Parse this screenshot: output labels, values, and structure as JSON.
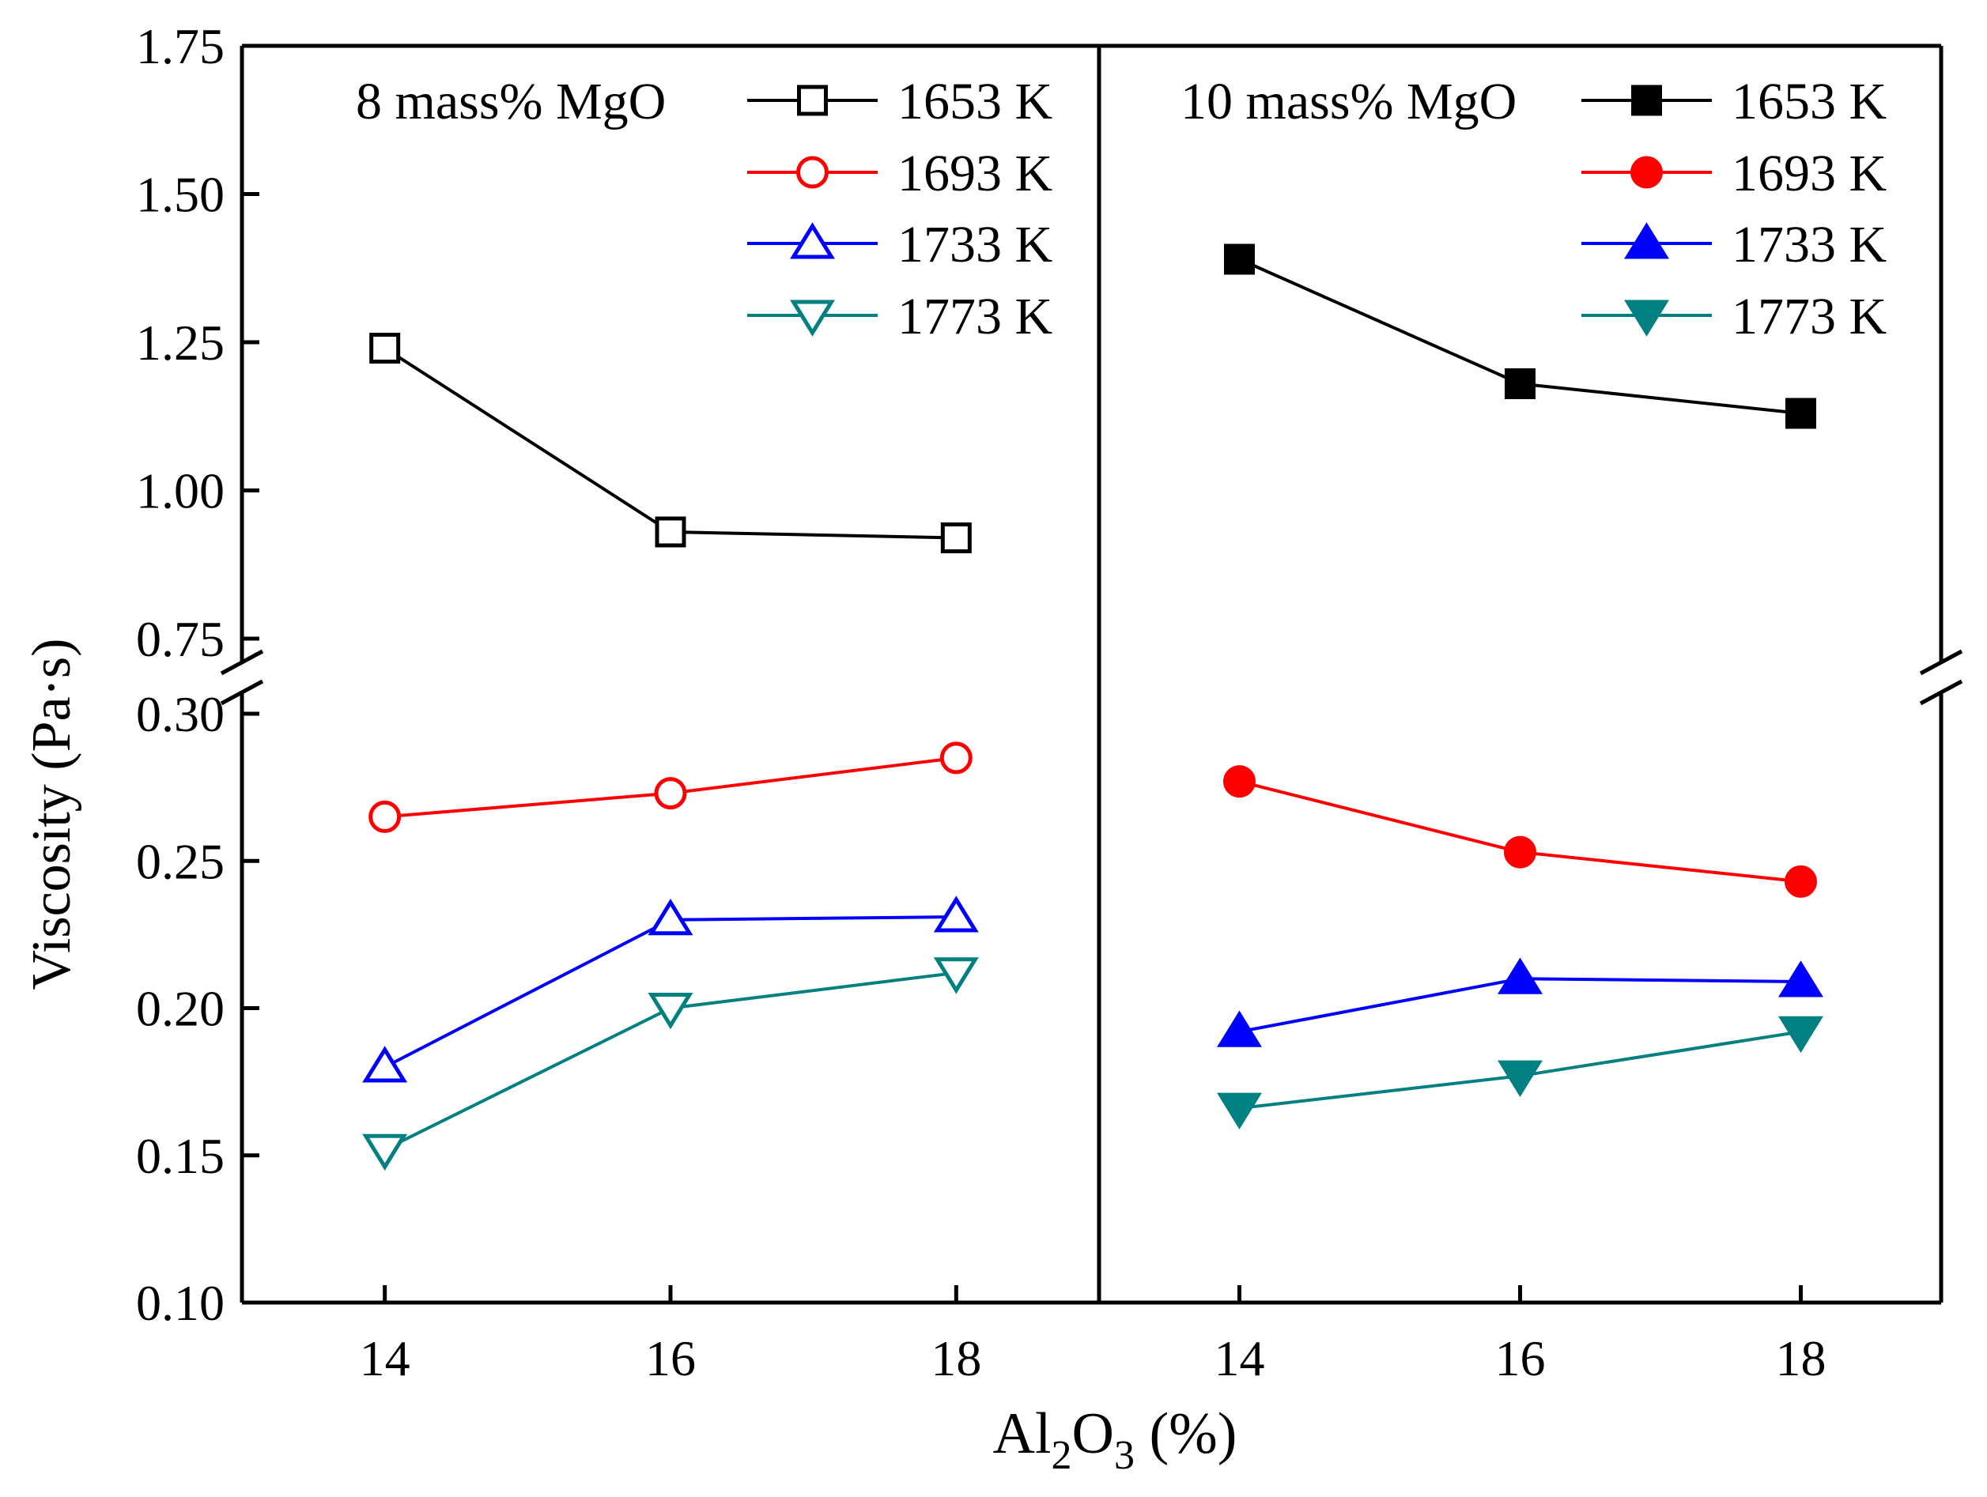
{
  "chart_data": {
    "type": "line",
    "ylabel": "Viscosity (Pa·s)",
    "xlabel": {
      "base": "Al",
      "sub1": "2",
      "mid": "O",
      "sub2": "3",
      "tail": " (%)"
    },
    "x_ticks": [
      "14",
      "16",
      "18"
    ],
    "xlim": [
      13,
      19
    ],
    "y_axis": {
      "break_between": [
        0.3,
        0.75
      ],
      "lower": {
        "range": [
          0.1,
          0.3
        ],
        "ticks": [
          "0.10",
          "0.15",
          "0.20",
          "0.25",
          "0.30"
        ]
      },
      "upper": {
        "range": [
          0.75,
          1.75
        ],
        "ticks": [
          "0.75",
          "1.00",
          "1.25",
          "1.50",
          "1.75"
        ]
      }
    },
    "panels": [
      {
        "title": "8 mass% MgO",
        "filled": false,
        "series": [
          {
            "name": "1653 K",
            "color": "#000000",
            "marker": "square",
            "x": [
              14,
              16,
              18
            ],
            "values": [
              1.24,
              0.93,
              0.92
            ]
          },
          {
            "name": "1693 K",
            "color": "#ff0000",
            "marker": "circle",
            "x": [
              14,
              16,
              18
            ],
            "values": [
              0.265,
              0.273,
              0.285
            ]
          },
          {
            "name": "1733 K",
            "color": "#0000ff",
            "marker": "triangle-up",
            "x": [
              14,
              16,
              18
            ],
            "values": [
              0.18,
              0.23,
              0.231
            ]
          },
          {
            "name": "1773 K",
            "color": "#008080",
            "marker": "triangle-down",
            "x": [
              14,
              16,
              18
            ],
            "values": [
              0.152,
              0.2,
              0.212
            ]
          }
        ]
      },
      {
        "title": "10 mass% MgO",
        "filled": true,
        "series": [
          {
            "name": "1653 K",
            "color": "#000000",
            "marker": "square",
            "x": [
              14,
              16,
              18
            ],
            "values": [
              1.39,
              1.18,
              1.13
            ]
          },
          {
            "name": "1693 K",
            "color": "#ff0000",
            "marker": "circle",
            "x": [
              14,
              16,
              18
            ],
            "values": [
              0.277,
              0.253,
              0.243
            ]
          },
          {
            "name": "1733 K",
            "color": "#0000ff",
            "marker": "triangle-up",
            "x": [
              14,
              16,
              18
            ],
            "values": [
              0.192,
              0.21,
              0.209
            ]
          },
          {
            "name": "1773 K",
            "color": "#008080",
            "marker": "triangle-down",
            "x": [
              14,
              16,
              18
            ],
            "values": [
              0.166,
              0.177,
              0.192
            ]
          }
        ]
      }
    ]
  }
}
